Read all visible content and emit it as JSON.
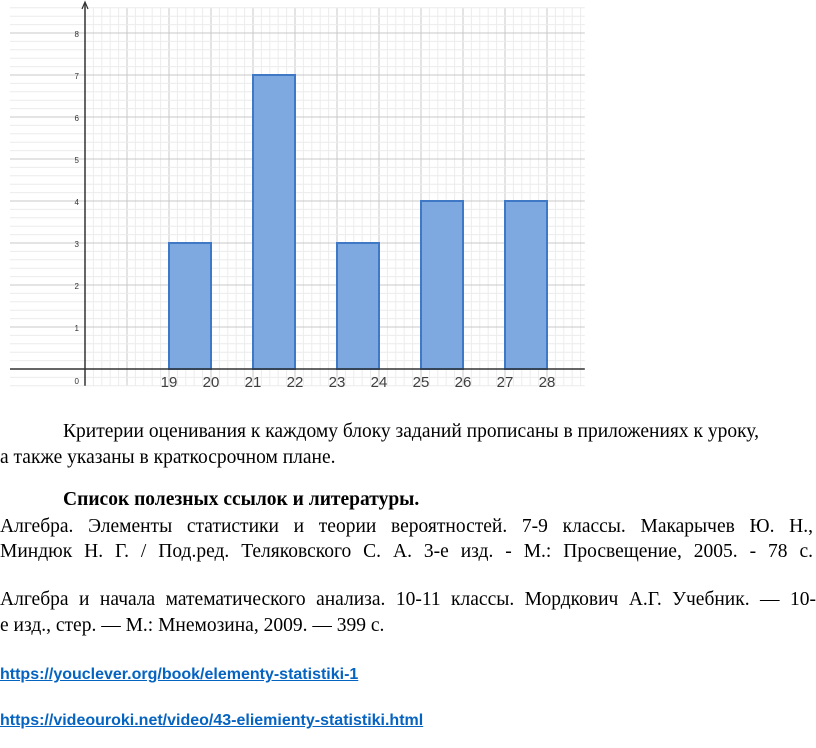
{
  "chart_data": {
    "type": "bar",
    "title": "",
    "xlabel": "",
    "ylabel": "",
    "bins": [
      [
        19,
        20
      ],
      [
        21,
        22
      ],
      [
        23,
        24
      ],
      [
        25,
        26
      ],
      [
        27,
        28
      ]
    ],
    "values": [
      3,
      7,
      3,
      4,
      4
    ],
    "x_tick_labels": [
      "19",
      "20",
      "21",
      "22",
      "23",
      "24",
      "25",
      "26",
      "27",
      "28"
    ],
    "y_tick_labels": [
      "0",
      "1",
      "2",
      "3",
      "4",
      "5",
      "6",
      "7",
      "8"
    ],
    "xlim": [
      17,
      28.9
    ],
    "ylim": [
      -0.4,
      8.6
    ],
    "grid": true,
    "bar_color": "#7ea9e0",
    "bar_edge_color": "#3f78c4"
  },
  "text": {
    "para1_line1": "Критерии оценивания к каждому блоку заданий прописаны в приложениях к уроку,",
    "para1_line2": "а также указаны в краткосрочном плане.",
    "heading": "Список полезных ссылок и литературы.",
    "ref1_line1": "Алгебра. Элементы статистики и теории вероятностей. 7-9 классы. Макарычев Ю. Н.,",
    "ref1_line2": "Миндюк Н. Г. / Под.ред. Теляковского С. А. 3-е изд. - М.: Просвещение, 2005. - 78 с.",
    "ref2_line1": "Алгебра и начала математического анализа.  10-11 классы. Мордкович А.Г. Учебник. — 10-",
    "ref2_line2": "е изд., стер. — М.: Мнемозина, 2009. — 399 с.",
    "link1": "https://youclever.org/book/elementy-statistiki-1",
    "link2": "https://videouroki.net/video/43-eliemienty-statistiki.html"
  }
}
